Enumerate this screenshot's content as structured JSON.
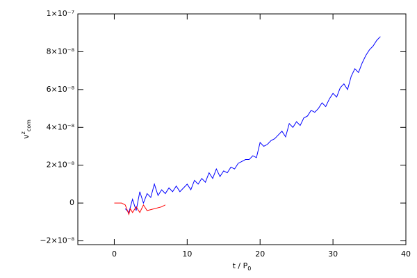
{
  "chart_data": {
    "type": "line",
    "x_label": {
      "base": "t / P",
      "sub": "0"
    },
    "y_label": {
      "base": "v",
      "sup": "z",
      "sub": "com"
    },
    "xlim": [
      -5,
      40
    ],
    "xticks": [
      0,
      10,
      20,
      30,
      40
    ],
    "ylim": [
      -2.2e-08,
      1e-07
    ],
    "yticks": [
      {
        "value": -2e-08,
        "label": "−2×10⁻⁸"
      },
      0,
      {
        "value": 2e-08,
        "label": "2×10⁻⁸"
      },
      {
        "value": 4e-08,
        "label": "4×10⁻⁸"
      },
      {
        "value": 6e-08,
        "label": "6×10⁻⁸"
      },
      {
        "value": 8e-08,
        "label": "8×10⁻⁸"
      },
      {
        "value": 1e-07,
        "label": "1×10⁻⁷"
      }
    ],
    "series": [
      {
        "color": "#0000ff",
        "x": [
          1.5,
          2,
          2.5,
          3,
          3.5,
          4,
          4.5,
          5,
          5.5,
          6,
          6.5,
          7,
          7.5,
          8,
          8.5,
          9,
          9.5,
          10,
          10.5,
          11,
          11.5,
          12,
          12.5,
          13,
          13.5,
          14,
          14.5,
          15,
          15.5,
          16,
          16.5,
          17,
          17.5,
          18,
          18.5,
          19,
          19.5,
          20,
          20.5,
          21,
          21.5,
          22,
          22.5,
          23,
          23.5,
          24,
          24.5,
          25,
          25.5,
          26,
          26.5,
          27,
          27.5,
          28,
          28.5,
          29,
          29.5,
          30,
          30.5,
          31,
          31.5,
          32,
          32.5,
          33,
          33.5,
          34,
          34.5,
          35,
          35.5,
          36,
          36.5
        ],
        "values": [
          -3e-09,
          -5e-09,
          2e-09,
          -4e-09,
          6e-09,
          0.0,
          5e-09,
          3e-09,
          1e-08,
          4e-09,
          7e-09,
          5e-09,
          8e-09,
          6e-09,
          9e-09,
          6e-09,
          8e-09,
          1e-08,
          7e-09,
          1.2e-08,
          1e-08,
          1.3e-08,
          1.1e-08,
          1.6e-08,
          1.3e-08,
          1.8e-08,
          1.4e-08,
          1.7e-08,
          1.6e-08,
          1.9e-08,
          1.8e-08,
          2.1e-08,
          2.2e-08,
          2.3e-08,
          2.3e-08,
          2.5e-08,
          2.4e-08,
          3.2e-08,
          3e-08,
          3.1e-08,
          3.3e-08,
          3.4e-08,
          3.6e-08,
          3.8e-08,
          3.5e-08,
          4.2e-08,
          4e-08,
          4.3e-08,
          4.1e-08,
          4.5e-08,
          4.6e-08,
          4.9e-08,
          4.8e-08,
          5e-08,
          5.3e-08,
          5.1e-08,
          5.5e-08,
          5.8e-08,
          5.6e-08,
          6.1e-08,
          6.3e-08,
          6e-08,
          6.7e-08,
          7.1e-08,
          6.9e-08,
          7.4e-08,
          7.8e-08,
          8.1e-08,
          8.3e-08,
          8.6e-08,
          8.8e-08
        ]
      },
      {
        "color": "#ff0000",
        "x": [
          0,
          0.5,
          1,
          1.5,
          2,
          2.2,
          2.5,
          3,
          3.5,
          4,
          4.5,
          6.5,
          7
        ],
        "values": [
          0,
          0,
          0,
          -1e-09,
          -6e-09,
          -3e-09,
          -5e-09,
          -2e-09,
          -5e-09,
          -1e-09,
          -4e-09,
          -2e-09,
          -1e-09
        ]
      }
    ]
  }
}
